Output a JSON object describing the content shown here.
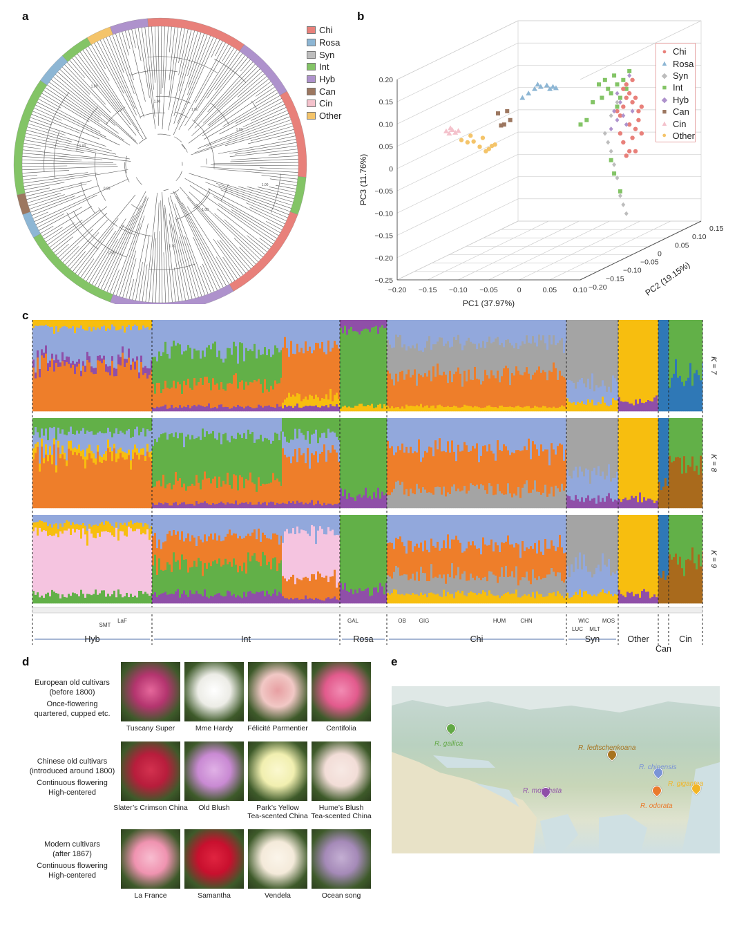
{
  "panels": {
    "a": "a",
    "b": "b",
    "c": "c",
    "d": "d",
    "e": "e"
  },
  "colors": {
    "Chi": "#e8807a",
    "Rosa": "#8db6d4",
    "Syn": "#bdbdbd",
    "Int": "#83c466",
    "Hyb": "#ae92cc",
    "Can": "#9c7760",
    "Cin": "#f4c2cc",
    "Other": "#f4c46a",
    "k_orange": "#ee7e2a",
    "k_blue": "#92a8dc",
    "k_green": "#62b048",
    "k_gray": "#a4a4a4",
    "k_yellow": "#f7be0f",
    "k_purple": "#8f4fa8",
    "k_darkblue": "#2f78b6",
    "k_brown": "#a96a1c",
    "k_pink": "#f5c4e0"
  },
  "legend_a": [
    {
      "label": "Chi",
      "color": "#e8807a"
    },
    {
      "label": "Rosa",
      "color": "#8db6d4"
    },
    {
      "label": "Syn",
      "color": "#bdbdbd"
    },
    {
      "label": "Int",
      "color": "#83c466"
    },
    {
      "label": "Hyb",
      "color": "#ae92cc"
    },
    {
      "label": "Can",
      "color": "#9c7760"
    },
    {
      "label": "Cin",
      "color": "#f4c2cc"
    },
    {
      "label": "Other",
      "color": "#f4c46a"
    }
  ],
  "legend_b": [
    {
      "label": "Chi",
      "marker": "●",
      "color": "#e8807a"
    },
    {
      "label": "Rosa",
      "marker": "▲",
      "color": "#8db6d4"
    },
    {
      "label": "Syn",
      "marker": "◆",
      "color": "#bdbdbd"
    },
    {
      "label": "Int",
      "marker": "■",
      "color": "#83c466"
    },
    {
      "label": "Hyb",
      "marker": "◆",
      "color": "#ae92cc"
    },
    {
      "label": "Can",
      "marker": "■",
      "color": "#9c7760"
    },
    {
      "label": "Cin",
      "marker": "▲",
      "color": "#f4c2cc"
    },
    {
      "label": "Other",
      "marker": "●",
      "color": "#f4c46a"
    }
  ],
  "tree_labels": [
    "1.00",
    "1.00",
    "1.00",
    "1.00",
    "1.00",
    "0.95",
    "0.99",
    "1.00",
    "1.00",
    "1.00"
  ],
  "chart_data": {
    "type": "scatter",
    "title": "",
    "xlabel": "PC1 (37.97%)",
    "ylabel": "PC3 (11.76%)",
    "zlabel": "PC2 (19.15%)",
    "x_ticks": [
      "−0.20",
      "−0.15",
      "−0.10",
      "−0.05",
      "0",
      "0.05",
      "0.10"
    ],
    "y_ticks": [
      "0.20",
      "0.15",
      "0.10",
      "0.05",
      "0",
      "−0.05",
      "−0.10",
      "−0.15",
      "−0.20",
      "−0.25"
    ],
    "z_ticks": [
      "0.15",
      "0.10",
      "0.05",
      "0",
      "−0.05",
      "−0.10",
      "−0.15",
      "−0.20"
    ],
    "xlim": [
      -0.2,
      0.1
    ],
    "ylim": [
      -0.25,
      0.2
    ],
    "series": [
      {
        "name": "Cin",
        "points": [
          [
            -0.165,
            0.045
          ],
          [
            -0.16,
            0.04
          ],
          [
            -0.155,
            0.048
          ],
          [
            -0.15,
            0.042
          ],
          [
            -0.145,
            0.046
          ],
          [
            -0.158,
            0.052
          ]
        ]
      },
      {
        "name": "Other",
        "points": [
          [
            -0.14,
            0.025
          ],
          [
            -0.13,
            0.02
          ],
          [
            -0.12,
            0.022
          ],
          [
            -0.11,
            0.01
          ],
          [
            -0.1,
            0.0
          ],
          [
            -0.095,
            0.005
          ],
          [
            -0.09,
            0.012
          ],
          [
            -0.085,
            0.015
          ],
          [
            -0.105,
            0.03
          ],
          [
            -0.125,
            0.035
          ]
        ]
      },
      {
        "name": "Can",
        "points": [
          [
            -0.08,
            0.085
          ],
          [
            -0.065,
            0.09
          ],
          [
            -0.06,
            0.07
          ],
          [
            -0.07,
            0.06
          ],
          [
            -0.075,
            0.058
          ]
        ]
      },
      {
        "name": "Rosa",
        "points": [
          [
            -0.04,
            0.12
          ],
          [
            -0.03,
            0.13
          ],
          [
            -0.02,
            0.14
          ],
          [
            -0.01,
            0.145
          ],
          [
            0.0,
            0.148
          ],
          [
            0.005,
            0.14
          ],
          [
            0.01,
            0.145
          ],
          [
            -0.015,
            0.15
          ],
          [
            0.015,
            0.142
          ]
        ]
      },
      {
        "name": "Int",
        "points": [
          [
            0.01,
            0.06
          ],
          [
            0.02,
            0.07
          ],
          [
            0.03,
            0.11
          ],
          [
            0.04,
            0.15
          ],
          [
            0.05,
            0.16
          ],
          [
            0.055,
            0.14
          ],
          [
            0.06,
            0.13
          ],
          [
            0.065,
            0.17
          ],
          [
            0.07,
            0.15
          ],
          [
            0.075,
            0.12
          ],
          [
            0.08,
            0.16
          ],
          [
            0.085,
            0.14
          ],
          [
            0.06,
            -0.02
          ],
          [
            0.065,
            -0.05
          ],
          [
            0.075,
            -0.09
          ],
          [
            0.07,
            0.1
          ],
          [
            0.045,
            0.12
          ],
          [
            0.09,
            0.18
          ]
        ]
      },
      {
        "name": "Chi",
        "points": [
          [
            0.07,
            0.09
          ],
          [
            0.075,
            0.08
          ],
          [
            0.08,
            0.1
          ],
          [
            0.085,
            0.12
          ],
          [
            0.09,
            0.13
          ],
          [
            0.095,
            0.11
          ],
          [
            0.1,
            0.12
          ],
          [
            0.105,
            0.09
          ],
          [
            0.1,
            0.05
          ],
          [
            0.095,
            0.03
          ],
          [
            0.09,
            0.0
          ],
          [
            0.085,
            -0.01
          ],
          [
            0.08,
            0.02
          ],
          [
            0.075,
            0.04
          ],
          [
            0.11,
            0.1
          ],
          [
            0.105,
            0.07
          ],
          [
            0.09,
            0.06
          ],
          [
            0.1,
            0.0
          ],
          [
            0.11,
            0.04
          ],
          [
            0.085,
            0.15
          ],
          [
            0.095,
            0.16
          ],
          [
            0.08,
            0.14
          ]
        ]
      },
      {
        "name": "Hyb",
        "points": [
          [
            0.065,
            0.09
          ],
          [
            0.07,
            0.07
          ],
          [
            0.075,
            0.11
          ],
          [
            0.08,
            0.08
          ],
          [
            0.085,
            0.06
          ],
          [
            0.09,
            0.17
          ],
          [
            0.06,
            0.05
          ],
          [
            0.07,
            0.13
          ],
          [
            0.095,
            0.09
          ]
        ]
      },
      {
        "name": "Syn",
        "points": [
          [
            0.05,
            0.04
          ],
          [
            0.055,
            0.02
          ],
          [
            0.06,
            0.0
          ],
          [
            0.065,
            -0.03
          ],
          [
            0.07,
            -0.06
          ],
          [
            0.075,
            -0.1
          ],
          [
            0.08,
            -0.12
          ],
          [
            0.085,
            -0.14
          ],
          [
            0.07,
            0.11
          ],
          [
            0.06,
            0.08
          ]
        ]
      }
    ]
  },
  "structure": {
    "k_labels": [
      "K = 7",
      "K = 8",
      "K = 9"
    ],
    "groups": [
      {
        "label": "Hyb"
      },
      {
        "label": "Int"
      },
      {
        "label": "Rosa"
      },
      {
        "label": "Chi"
      },
      {
        "label": "Syn"
      },
      {
        "label": "Other"
      },
      {
        "label": "Can"
      },
      {
        "label": "Cin"
      }
    ],
    "subgroups": [
      "SMT",
      "LaF",
      "GAL",
      "OB",
      "GIG",
      "HUM",
      "CHN",
      "WIC",
      "MLT",
      "LUC",
      "MOS"
    ]
  },
  "cultivar_rows": [
    {
      "desc": [
        "European old cultivars",
        "(before 1800)",
        "Once-flowering",
        "quartered, cupped etc."
      ],
      "photos": [
        {
          "label": "Tuscany Super",
          "color": "#b4356f",
          "center": "#e5679b"
        },
        {
          "label": "Mme Hardy",
          "color": "#ecece6",
          "center": "#ffffff"
        },
        {
          "label": "Félicité Parmentier",
          "color": "#f1c8c5",
          "center": "#e79fa2"
        },
        {
          "label": "Centifolia",
          "color": "#e25b8d",
          "center": "#f28bb3"
        }
      ]
    },
    {
      "desc": [
        "Chinese old cultivars",
        "(introduced around 1800)",
        "Continuous flowering",
        "High-centered"
      ],
      "photos": [
        {
          "label": "Slater’s Crimson China",
          "color": "#b81d3c",
          "center": "#d3314f"
        },
        {
          "label": "Old Blush",
          "color": "#c98ad3",
          "center": "#e0b1e6"
        },
        {
          "label": "Park’s Yellow\nTea-scented China",
          "color": "#f1efb0",
          "center": "#fbf8cf"
        },
        {
          "label": "Hume’s Blush\nTea-scented China",
          "color": "#f2ddd7",
          "center": "#f7e9e4"
        }
      ]
    },
    {
      "desc": [
        "Modern cultivars",
        "(after 1867)",
        "Continuous flowering",
        "High-centered"
      ],
      "photos": [
        {
          "label": "La France",
          "color": "#ef93b0",
          "center": "#f8bdd0"
        },
        {
          "label": "Samantha",
          "color": "#c8102e",
          "center": "#e02440"
        },
        {
          "label": "Vendela",
          "color": "#f4eada",
          "center": "#fbf5ea"
        },
        {
          "label": "Ocean song",
          "color": "#a58ab8",
          "center": "#c4afd3"
        }
      ]
    }
  ],
  "map_pins": [
    {
      "label": "R. gallica",
      "color": "#62a845"
    },
    {
      "label": "R. fedtschenkoana",
      "color": "#a7731f"
    },
    {
      "label": "R. moschata",
      "color": "#8f4fa8"
    },
    {
      "label": "R. chinensis",
      "color": "#7a93d6"
    },
    {
      "label": "R. odorata",
      "color": "#ea7a2c"
    },
    {
      "label": "R. gigantea",
      "color": "#f2b524"
    }
  ]
}
